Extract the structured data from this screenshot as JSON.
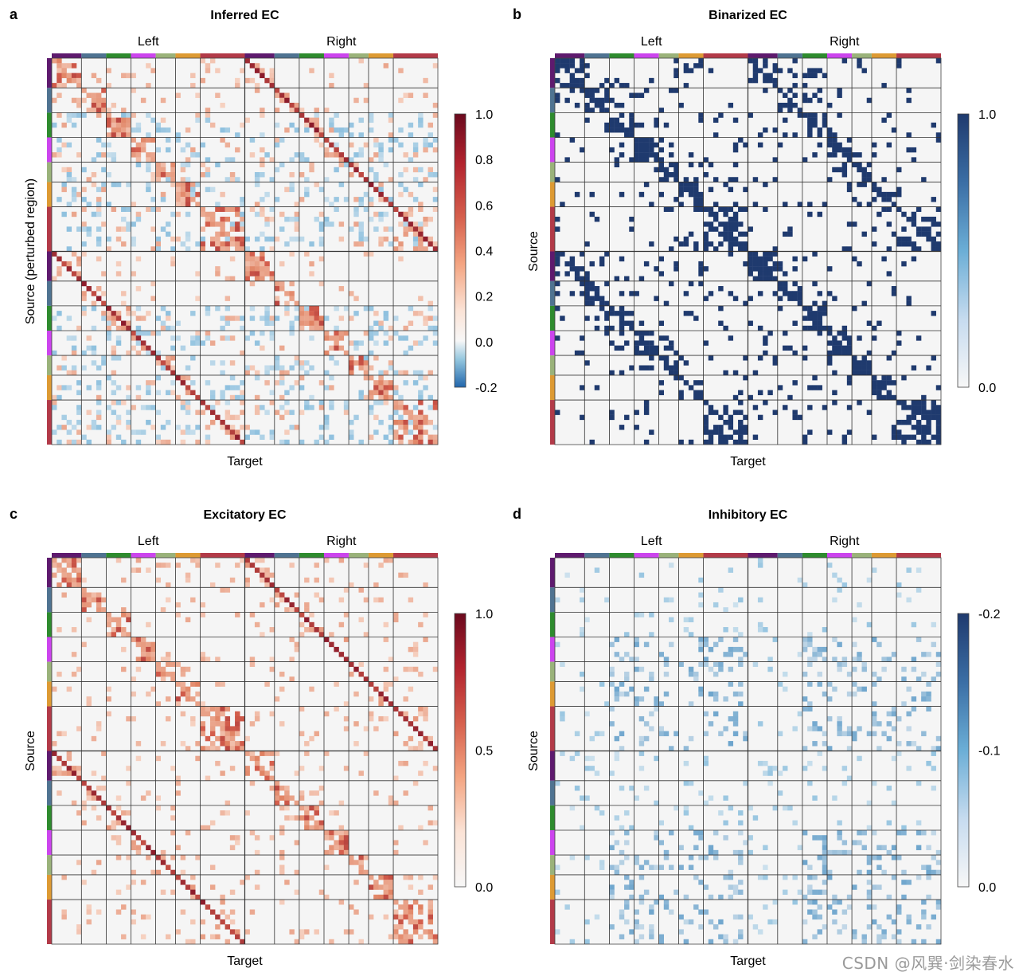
{
  "watermark": "CSDN @风巽·剑染春水",
  "groups": [
    {
      "size": 6,
      "color": "#5e1a6e"
    },
    {
      "size": 5,
      "color": "#4f7391"
    },
    {
      "size": 5,
      "color": "#2e8b2e"
    },
    {
      "size": 5,
      "color": "#cc44ee"
    },
    {
      "size": 4,
      "color": "#9ab27a"
    },
    {
      "size": 5,
      "color": "#dd9a33"
    },
    {
      "size": 9,
      "color": "#b23a48"
    }
  ],
  "chart_data": [
    {
      "panel_label": "a",
      "type": "heatmap",
      "title": "Inferred EC",
      "xlabel": "Target",
      "ylabel": "Source (perturbed region)",
      "hemispheres": [
        "Left",
        "Right"
      ],
      "colorbar": {
        "ticks": [
          "1.0",
          "0.8",
          "0.6",
          "0.4",
          "0.2",
          "0.0",
          "-0.2"
        ],
        "range": [
          -0.2,
          1.0
        ],
        "colors": [
          "#6b0a1e",
          "#b2232e",
          "#d6604d",
          "#f4a582",
          "#fbe3d6",
          "#f7f7f7",
          "#92c5de",
          "#2166ac"
        ]
      },
      "mode": "diverging"
    },
    {
      "panel_label": "b",
      "type": "heatmap",
      "title": "Binarized EC",
      "xlabel": "Target",
      "ylabel": "Source",
      "hemispheres": [
        "Left",
        "Right"
      ],
      "colorbar": {
        "ticks": [
          "1.0",
          "0.0"
        ],
        "range": [
          0,
          1
        ],
        "colors": [
          "#1f3a6e",
          "#3b6ea5",
          "#6baed6",
          "#c6dbef",
          "#f7f7f7"
        ]
      },
      "mode": "binary"
    },
    {
      "panel_label": "c",
      "type": "heatmap",
      "title": "Excitatory EC",
      "xlabel": "Target",
      "ylabel": "Source",
      "hemispheres": [
        "Left",
        "Right"
      ],
      "colorbar": {
        "ticks": [
          "1.0",
          "0.5",
          "0.0"
        ],
        "range": [
          0,
          1
        ],
        "colors": [
          "#6b0a1e",
          "#b2232e",
          "#d6604d",
          "#f4a582",
          "#fbe3d6",
          "#f7f7f7"
        ]
      },
      "mode": "excitatory"
    },
    {
      "panel_label": "d",
      "type": "heatmap",
      "title": "Inhibitory EC",
      "xlabel": "Target",
      "ylabel": "Source",
      "hemispheres": [
        "Left",
        "Right"
      ],
      "colorbar": {
        "ticks": [
          "-0.2",
          "-0.1",
          "0.0"
        ],
        "range": [
          -0.2,
          0
        ],
        "colors": [
          "#1f3a6e",
          "#3b6ea5",
          "#6baed6",
          "#c6dbef",
          "#f7f7f7"
        ]
      },
      "mode": "inhibitory"
    }
  ]
}
